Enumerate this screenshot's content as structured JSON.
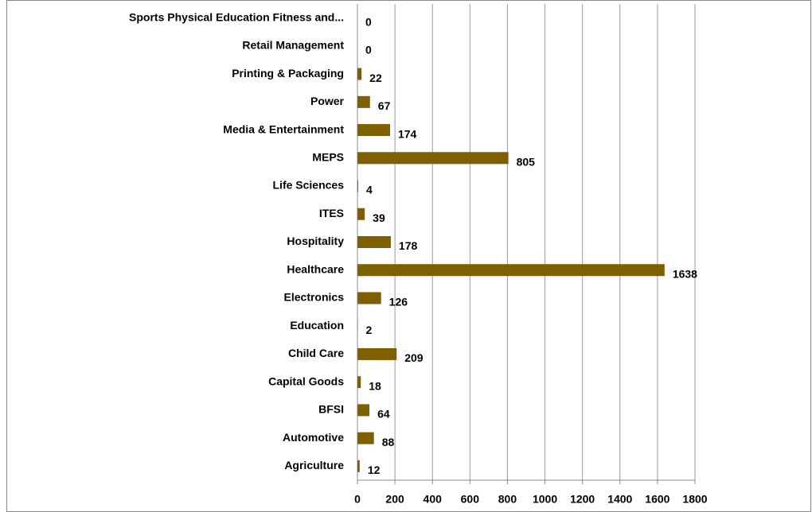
{
  "chart_data": {
    "type": "bar",
    "orientation": "horizontal",
    "categories": [
      "Sports Physical Education Fitness and...",
      "Retail Management",
      "Printing & Packaging",
      "Power",
      "Media & Entertainment",
      "MEPS",
      "Life Sciences",
      "ITES",
      "Hospitality",
      "Healthcare",
      "Electronics",
      "Education",
      "Child Care",
      "Capital Goods",
      "BFSI",
      "Automotive",
      "Agriculture"
    ],
    "values": [
      0,
      0,
      22,
      67,
      174,
      805,
      4,
      39,
      178,
      1638,
      126,
      2,
      209,
      18,
      64,
      88,
      12
    ],
    "color": "#7f6000",
    "xlim": [
      0,
      1800
    ],
    "xticks": [
      0,
      200,
      400,
      600,
      800,
      1000,
      1200,
      1400,
      1600,
      1800
    ],
    "grid": true
  }
}
